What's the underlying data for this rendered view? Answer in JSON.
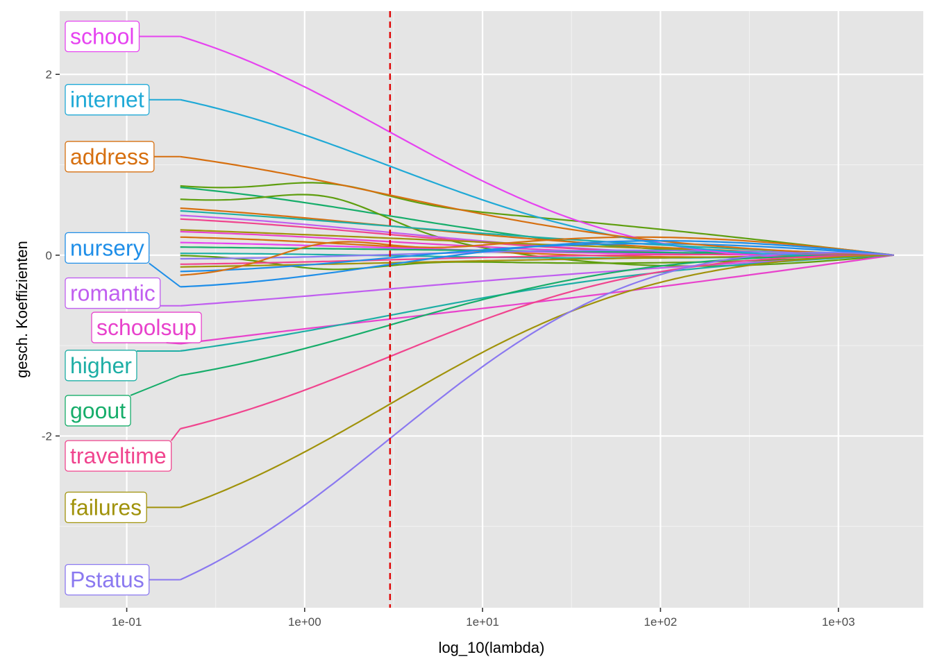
{
  "chart_data": {
    "type": "line",
    "title": "",
    "xlabel": "log_10(lambda)",
    "ylabel": "gesch. Koeffizienten",
    "x_scale": "log10",
    "xlim": [
      0.042,
      3000
    ],
    "ylim": [
      -3.9,
      2.7
    ],
    "x_ticks": [
      {
        "value": 0.1,
        "label": "1e-01"
      },
      {
        "value": 1,
        "label": "1e+00"
      },
      {
        "value": 10,
        "label": "1e+01"
      },
      {
        "value": 100,
        "label": "1e+02"
      },
      {
        "value": 1000,
        "label": "1e+03"
      }
    ],
    "y_ticks": [
      {
        "value": 2,
        "label": "2"
      },
      {
        "value": 0,
        "label": "0"
      },
      {
        "value": -2,
        "label": "-2"
      }
    ],
    "grid": true,
    "reference_line": {
      "x": 3.02,
      "color": "#e00000",
      "style": "dashed"
    },
    "lambda_start": 0.2,
    "lambda_end": 2050,
    "labeled_series": [
      {
        "name": "school",
        "color": "#e643f0",
        "start": 2.42,
        "mid": 1.0,
        "peak_pos": 0.0,
        "label_y": 2.42
      },
      {
        "name": "internet",
        "color": "#1fa9d6",
        "start": 1.72,
        "mid": 0.78,
        "peak_pos": 0.0,
        "label_y": 1.72
      },
      {
        "name": "address",
        "color": "#d66f0f",
        "start": 1.09,
        "mid": 0.66,
        "peak_pos": 0.0,
        "label_y": 1.09
      },
      {
        "name": "nursery",
        "color": "#1e8ee8",
        "start": -0.35,
        "mid": 0.24,
        "peak_pos": 0.0,
        "label_y": 0.08
      },
      {
        "name": "romantic",
        "color": "#c05ef0",
        "start": -0.56,
        "mid": -0.47,
        "peak_pos": 0.0,
        "label_y": -0.42
      },
      {
        "name": "schoolsup",
        "color": "#e842cc",
        "start": -0.98,
        "mid": -1.04,
        "peak_pos": 0.0,
        "label_y": -0.8
      },
      {
        "name": "higher",
        "color": "#1daea5",
        "start": -1.06,
        "mid": -0.72,
        "peak_pos": 0.0,
        "label_y": -1.22
      },
      {
        "name": "goout",
        "color": "#16ad6a",
        "start": -1.33,
        "mid": -0.65,
        "peak_pos": 0.0,
        "label_y": -1.72
      },
      {
        "name": "traveltime",
        "color": "#f0448e",
        "start": -1.92,
        "mid": -0.96,
        "peak_pos": 0.0,
        "label_y": -2.22
      },
      {
        "name": "failures",
        "color": "#a0920a",
        "start": -2.79,
        "mid": -1.47,
        "peak_pos": 0.0,
        "label_y": -2.79
      },
      {
        "name": "Pstatus",
        "color": "#8a78f0",
        "start": -3.59,
        "mid": -1.52,
        "peak_pos": 0.0,
        "label_y": -3.59
      }
    ],
    "other_series": [
      {
        "color": "#5e9e0e",
        "start": 0.76,
        "mid": 0.84,
        "peak_pos": 0.3
      },
      {
        "color": "#16ad6a",
        "start": 0.75,
        "mid": 0.36,
        "peak_pos": 0.0
      },
      {
        "color": "#5e9e0e",
        "start": 0.61,
        "mid": -0.07,
        "peak_pos": 0.42
      },
      {
        "color": "#d66f0f",
        "start": 0.52,
        "mid": 0.34,
        "peak_pos": 0.0
      },
      {
        "color": "#1daea5",
        "start": 0.49,
        "mid": 0.39,
        "peak_pos": 0.0
      },
      {
        "color": "#c05ef0",
        "start": 0.44,
        "mid": 0.2,
        "peak_pos": 0.0
      },
      {
        "color": "#f0448e",
        "start": 0.4,
        "mid": 0.18,
        "peak_pos": 0.0
      },
      {
        "color": "#a0920a",
        "start": 0.28,
        "mid": 0.24,
        "peak_pos": 0.0
      },
      {
        "color": "#e842cc",
        "start": 0.26,
        "mid": 0.12,
        "peak_pos": 0.0
      },
      {
        "color": "#d66f0f",
        "start": 0.2,
        "mid": 0.02,
        "peak_pos": 0.0
      },
      {
        "color": "#e643f0",
        "start": 0.14,
        "mid": 0.07,
        "peak_pos": 0.0
      },
      {
        "color": "#16ad6a",
        "start": 0.09,
        "mid": 0.09,
        "peak_pos": 0.0
      },
      {
        "color": "#1daea5",
        "start": 0.02,
        "mid": -0.06,
        "peak_pos": 0.0
      },
      {
        "color": "#5e9e0e",
        "start": 0.0,
        "mid": -0.18,
        "peak_pos": -0.22
      },
      {
        "color": "#8a78f0",
        "start": -0.04,
        "mid": 0.1,
        "peak_pos": 0.0
      },
      {
        "color": "#f0448e",
        "start": -0.1,
        "mid": -0.02,
        "peak_pos": 0.0
      },
      {
        "color": "#a0920a",
        "start": -0.13,
        "mid": -0.1,
        "peak_pos": 0.0
      },
      {
        "color": "#1e8ee8",
        "start": -0.18,
        "mid": 0.22,
        "peak_pos": 0.0
      },
      {
        "color": "#d66f0f",
        "start": -0.23,
        "mid": 0.36,
        "peak_pos": 0.4
      }
    ]
  }
}
